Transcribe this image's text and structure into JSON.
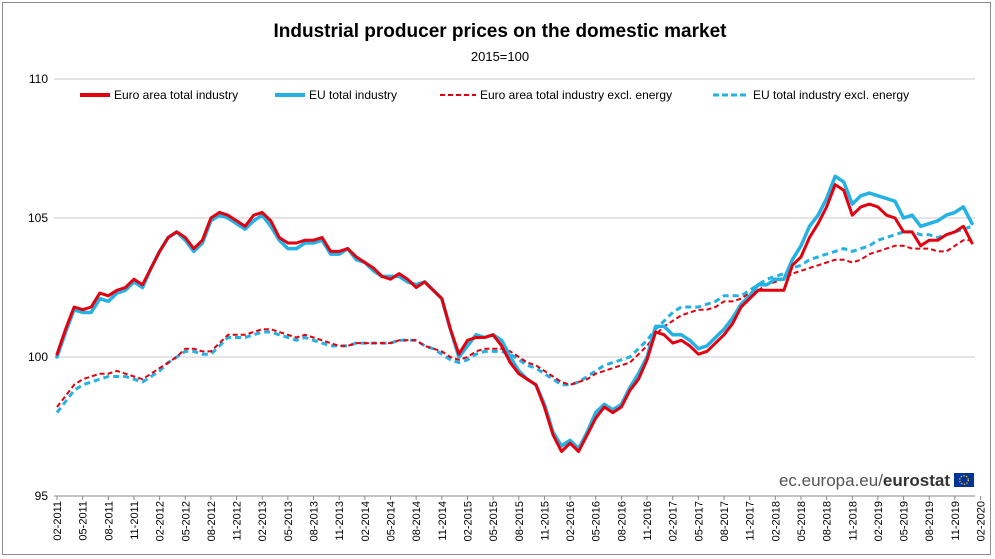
{
  "chart_data": {
    "type": "line",
    "title": "Industrial producer prices on the domestic market",
    "subtitle": "2015=100",
    "xlabel": "",
    "ylabel": "",
    "ylim": [
      95,
      110
    ],
    "yticks": [
      95,
      100,
      105,
      110
    ],
    "x_tick_labels": [
      "02-2011",
      "05-2011",
      "08-2011",
      "11-2011",
      "02-2012",
      "05-2012",
      "08-2012",
      "11-2012",
      "02-2013",
      "05-2013",
      "08-2013",
      "11-2013",
      "02-2014",
      "05-2014",
      "08-2014",
      "11-2014",
      "02-2015",
      "05-2015",
      "08-2015",
      "11-2015",
      "02-2016",
      "05-2016",
      "08-2016",
      "11-2016",
      "02-2017",
      "05-2017",
      "08-2017",
      "11-2017",
      "02-2018",
      "05-2018",
      "08-2018",
      "11-2018",
      "02-2019",
      "05-2019",
      "08-2019",
      "11-2019",
      "02-2020"
    ],
    "grid": true,
    "legend_position": "top",
    "credit": {
      "prefix": "ec.europa.eu/",
      "brand": "eurostat"
    },
    "series": [
      {
        "name": "Euro area total industry",
        "color": "#e3000f",
        "dash": "solid",
        "values": [
          100.1,
          101.0,
          101.8,
          101.7,
          101.8,
          102.3,
          102.2,
          102.4,
          102.5,
          102.8,
          102.6,
          103.2,
          103.8,
          104.3,
          104.5,
          104.3,
          103.9,
          104.2,
          105.0,
          105.2,
          105.1,
          104.9,
          104.7,
          105.1,
          105.2,
          104.9,
          104.3,
          104.1,
          104.1,
          104.2,
          104.2,
          104.3,
          103.8,
          103.8,
          103.9,
          103.6,
          103.4,
          103.2,
          102.9,
          102.8,
          103.0,
          102.8,
          102.5,
          102.7,
          102.4,
          102.1,
          101.0,
          100.1,
          100.6,
          100.7,
          100.7,
          100.8,
          100.4,
          99.8,
          99.4,
          99.2,
          99.0,
          98.2,
          97.2,
          96.6,
          96.9,
          96.6,
          97.2,
          97.8,
          98.2,
          98.0,
          98.2,
          98.8,
          99.2,
          99.9,
          100.9,
          100.8,
          100.5,
          100.6,
          100.4,
          100.1,
          100.2,
          100.5,
          100.8,
          101.2,
          101.8,
          102.1,
          102.4,
          102.4,
          102.4,
          102.4,
          103.3,
          103.6,
          104.3,
          104.8,
          105.4,
          106.2,
          106.0,
          105.1,
          105.4,
          105.5,
          105.4,
          105.1,
          105.0,
          104.5,
          104.5,
          104.0,
          104.2,
          104.2,
          104.4,
          104.5,
          104.7,
          104.1
        ]
      },
      {
        "name": "EU total industry",
        "color": "#24b1e4",
        "dash": "solid",
        "values": [
          100.0,
          100.9,
          101.7,
          101.6,
          101.6,
          102.1,
          102.0,
          102.3,
          102.4,
          102.7,
          102.5,
          103.2,
          103.8,
          104.3,
          104.5,
          104.2,
          103.8,
          104.1,
          104.9,
          105.1,
          105.0,
          104.8,
          104.6,
          104.9,
          105.1,
          104.7,
          104.2,
          103.9,
          103.9,
          104.1,
          104.1,
          104.2,
          103.7,
          103.7,
          103.9,
          103.5,
          103.4,
          103.1,
          102.9,
          102.9,
          102.9,
          102.7,
          102.6,
          102.7,
          102.4,
          102.1,
          101.0,
          100.0,
          100.4,
          100.8,
          100.7,
          100.8,
          100.6,
          100.0,
          99.5,
          99.2,
          99.0,
          98.3,
          97.3,
          96.8,
          97.0,
          96.7,
          97.3,
          98.0,
          98.3,
          98.1,
          98.3,
          98.9,
          99.4,
          100.0,
          101.1,
          101.1,
          100.8,
          100.8,
          100.6,
          100.3,
          100.4,
          100.7,
          101.0,
          101.4,
          101.9,
          102.2,
          102.6,
          102.6,
          102.8,
          102.8,
          103.5,
          104.0,
          104.7,
          105.1,
          105.7,
          106.5,
          106.3,
          105.5,
          105.8,
          105.9,
          105.8,
          105.7,
          105.6,
          105.0,
          105.1,
          104.7,
          104.8,
          104.9,
          105.1,
          105.2,
          105.4,
          104.8
        ]
      },
      {
        "name": "Euro area total industry excl. energy",
        "color": "#e3000f",
        "dash": "dashed",
        "values": [
          98.2,
          98.6,
          99.0,
          99.2,
          99.3,
          99.4,
          99.4,
          99.5,
          99.4,
          99.3,
          99.2,
          99.4,
          99.6,
          99.8,
          100.0,
          100.3,
          100.3,
          100.2,
          100.2,
          100.5,
          100.8,
          100.8,
          100.8,
          100.9,
          101.0,
          101.0,
          100.9,
          100.8,
          100.7,
          100.8,
          100.7,
          100.6,
          100.5,
          100.4,
          100.4,
          100.5,
          100.5,
          100.5,
          100.5,
          100.5,
          100.6,
          100.6,
          100.6,
          100.4,
          100.3,
          100.2,
          100.0,
          99.9,
          100.0,
          100.2,
          100.3,
          100.3,
          100.3,
          100.2,
          100.0,
          99.8,
          99.7,
          99.5,
          99.3,
          99.1,
          99.0,
          99.1,
          99.2,
          99.4,
          99.5,
          99.6,
          99.7,
          99.8,
          100.1,
          100.4,
          100.8,
          101.1,
          101.3,
          101.5,
          101.6,
          101.7,
          101.7,
          101.8,
          102.0,
          102.0,
          102.1,
          102.3,
          102.4,
          102.6,
          102.7,
          102.8,
          103.0,
          103.1,
          103.2,
          103.3,
          103.4,
          103.5,
          103.5,
          103.4,
          103.5,
          103.7,
          103.8,
          103.9,
          104.0,
          104.0,
          103.9,
          103.9,
          103.9,
          103.8,
          103.8,
          104.0,
          104.2,
          104.2
        ]
      },
      {
        "name": "EU total industry excl. energy",
        "color": "#24b1e4",
        "dash": "dashed",
        "values": [
          98.0,
          98.4,
          98.8,
          99.0,
          99.1,
          99.2,
          99.3,
          99.3,
          99.3,
          99.2,
          99.1,
          99.3,
          99.5,
          99.8,
          100.0,
          100.2,
          100.2,
          100.1,
          100.1,
          100.4,
          100.7,
          100.7,
          100.7,
          100.8,
          100.9,
          100.9,
          100.8,
          100.7,
          100.6,
          100.7,
          100.6,
          100.5,
          100.4,
          100.4,
          100.4,
          100.5,
          100.5,
          100.5,
          100.5,
          100.5,
          100.6,
          100.6,
          100.6,
          100.4,
          100.3,
          100.1,
          99.9,
          99.8,
          99.9,
          100.1,
          100.2,
          100.2,
          100.2,
          100.1,
          99.9,
          99.7,
          99.6,
          99.4,
          99.2,
          99.0,
          99.0,
          99.1,
          99.3,
          99.5,
          99.7,
          99.8,
          99.9,
          100.0,
          100.3,
          100.6,
          101.0,
          101.3,
          101.6,
          101.8,
          101.8,
          101.8,
          101.9,
          102.0,
          102.2,
          102.2,
          102.2,
          102.4,
          102.6,
          102.8,
          102.9,
          103.0,
          103.2,
          103.3,
          103.5,
          103.6,
          103.7,
          103.8,
          103.9,
          103.8,
          103.9,
          104.0,
          104.2,
          104.3,
          104.4,
          104.5,
          104.5,
          104.4,
          104.4,
          104.3,
          104.4,
          104.5,
          104.6,
          104.7
        ]
      }
    ]
  }
}
